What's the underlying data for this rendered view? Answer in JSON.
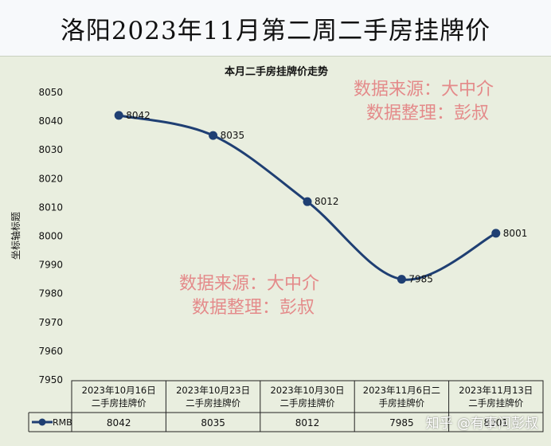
{
  "banner_title": "洛阳2023年11月第二周二手房挂牌价",
  "watermark": {
    "line1": "数据来源：大中介",
    "line2": "数据整理：彭叔",
    "color": "#e48a8a"
  },
  "credit": "知乎 @有事问彭叔",
  "chart_data": {
    "type": "line",
    "title": "本月二手房挂牌价走势",
    "xlabel": "",
    "ylabel": "坐标轴标题",
    "ylim": [
      7950,
      8050
    ],
    "yticks": [
      7950,
      7960,
      7970,
      7980,
      7990,
      8000,
      8010,
      8020,
      8030,
      8040,
      8050
    ],
    "grid": false,
    "smooth": true,
    "line_color": "#1f3f73",
    "categories": [
      [
        "2023年10月16日",
        "二手房挂牌价"
      ],
      [
        "2023年10月23日",
        "二手房挂牌价"
      ],
      [
        "2023年10月30日",
        "二手房挂牌价"
      ],
      [
        "2023年11月6日二",
        "手房挂牌价"
      ],
      [
        "2023年11月13日",
        "二手房挂牌价"
      ]
    ],
    "series": [
      {
        "name": "RMB",
        "values": [
          8042,
          8035,
          8012,
          7985,
          8001
        ]
      }
    ],
    "table": {
      "legend_label": "RMB",
      "values": [
        "8042",
        "8035",
        "8012",
        "7985",
        "8001"
      ]
    }
  }
}
